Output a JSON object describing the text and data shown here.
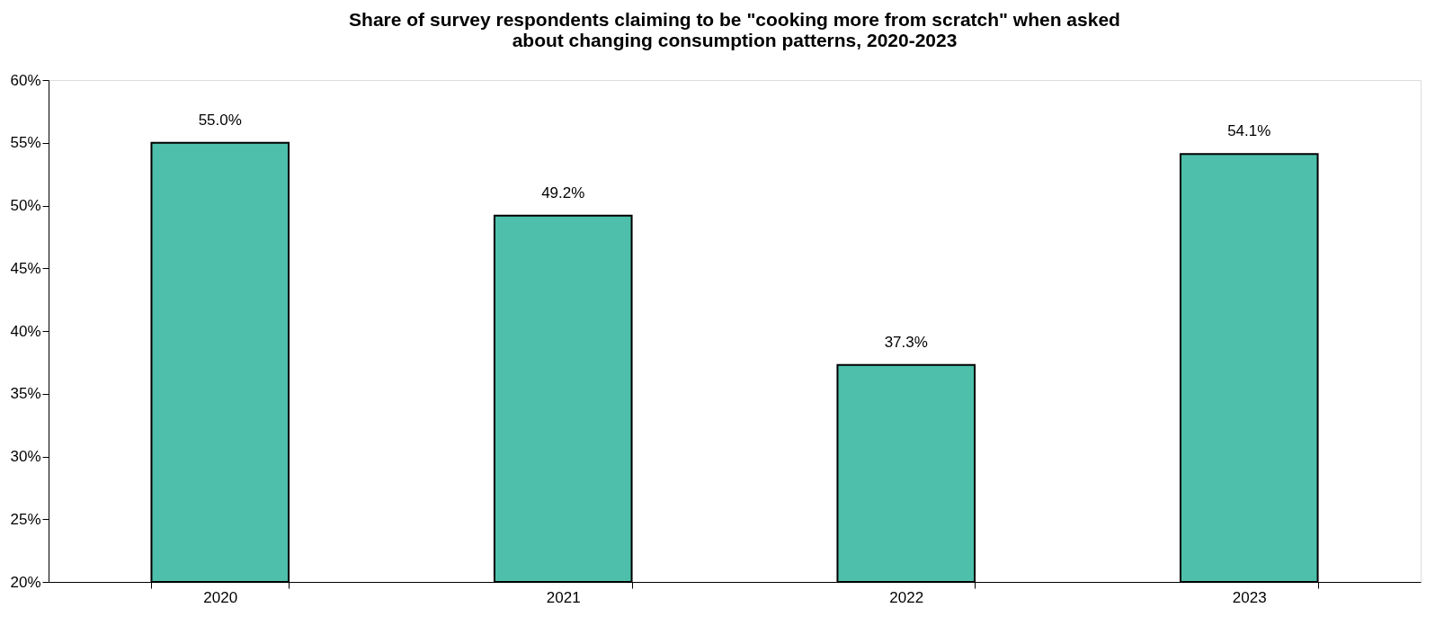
{
  "chart_data": {
    "type": "bar",
    "title": "Share of survey respondents claiming to be \"cooking more from scratch\" when asked\nabout changing consumption patterns, 2020-2023",
    "categories": [
      "2020",
      "2021",
      "2022",
      "2023"
    ],
    "values": [
      55.0,
      49.2,
      37.3,
      54.1
    ],
    "value_labels": [
      "55.0%",
      "49.2%",
      "37.3%",
      "54.1%"
    ],
    "color": "#4dbfaa",
    "ylim": [
      20,
      60
    ],
    "yticks": [
      {
        "value": 20,
        "label": "20%"
      },
      {
        "value": 25,
        "label": "25%"
      },
      {
        "value": 30,
        "label": "30%"
      },
      {
        "value": 35,
        "label": "35%"
      },
      {
        "value": 40,
        "label": "40%"
      },
      {
        "value": 45,
        "label": "45%"
      },
      {
        "value": 50,
        "label": "50%"
      },
      {
        "value": 55,
        "label": "55%"
      },
      {
        "value": 60,
        "label": "60%"
      }
    ],
    "grid": false
  }
}
